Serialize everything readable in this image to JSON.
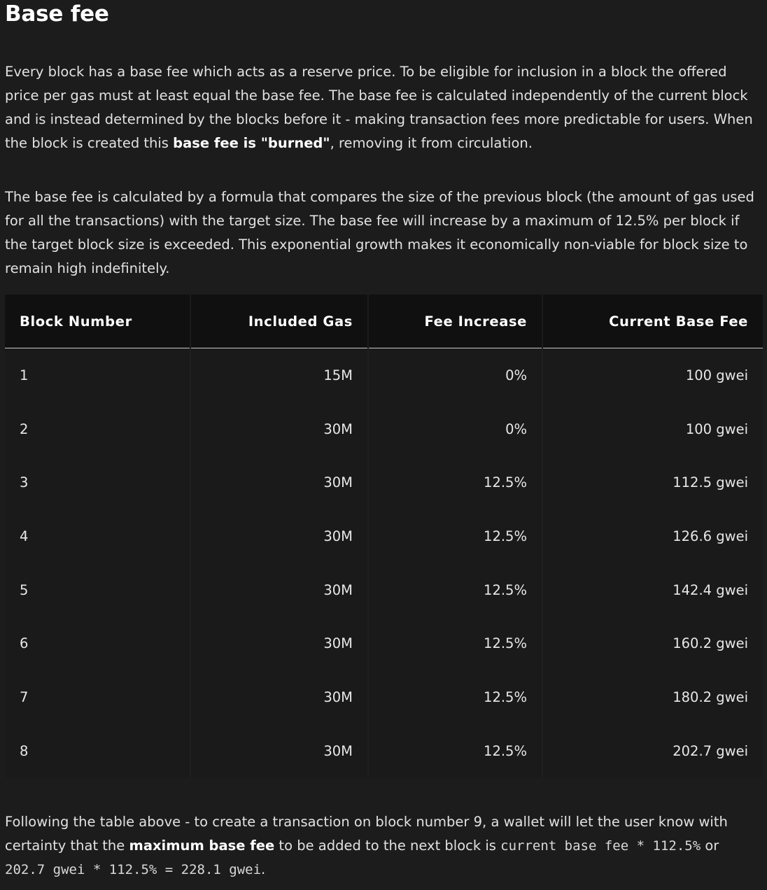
{
  "heading": "Base fee",
  "paragraph1": {
    "before": "Every block has a base fee which acts as a reserve price. To be eligible for inclusion in a block the offered price per gas must at least equal the base fee. The base fee is calculated independently of the current block and is instead determined by the blocks before it - making transaction fees more predictable for users. When the block is created this ",
    "bold": "base fee is \"burned\"",
    "after": ", removing it from circulation."
  },
  "paragraph2": "The base fee is calculated by a formula that compares the size of the previous block (the amount of gas used for all the transactions) with the target size. The base fee will increase by a maximum of 12.5% per block if the target block size is exceeded. This exponential growth makes it economically non-viable for block size to remain high indefinitely.",
  "table": {
    "headers": [
      "Block Number",
      "Included Gas",
      "Fee Increase",
      "Current Base Fee"
    ],
    "rows": [
      [
        "1",
        "15M",
        "0%",
        "100 gwei"
      ],
      [
        "2",
        "30M",
        "0%",
        "100 gwei"
      ],
      [
        "3",
        "30M",
        "12.5%",
        "112.5 gwei"
      ],
      [
        "4",
        "30M",
        "12.5%",
        "126.6 gwei"
      ],
      [
        "5",
        "30M",
        "12.5%",
        "142.4 gwei"
      ],
      [
        "6",
        "30M",
        "12.5%",
        "160.2 gwei"
      ],
      [
        "7",
        "30M",
        "12.5%",
        "180.2 gwei"
      ],
      [
        "8",
        "30M",
        "12.5%",
        "202.7 gwei"
      ]
    ]
  },
  "paragraph3": {
    "before": "Following the table above - to create a transaction on block number 9, a wallet will let the user know with certainty that the ",
    "bold": "maximum base fee",
    "middle": " to be added to the next block is ",
    "code1": "current base fee * 112.5%",
    "or": " or ",
    "code2": "202.7 gwei * 112.5% = 228.1 gwei",
    "end": "."
  }
}
